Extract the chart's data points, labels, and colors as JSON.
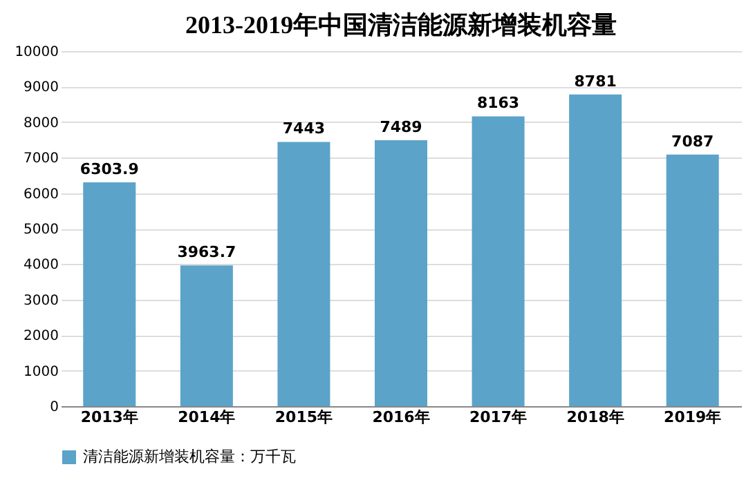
{
  "chart_data": {
    "type": "bar",
    "title": "2013-2019年中国清洁能源新增装机容量",
    "categories": [
      "2013年",
      "2014年",
      "2015年",
      "2016年",
      "2017年",
      "2018年",
      "2019年"
    ],
    "series": [
      {
        "name": "清洁能源新增装机容量：万千瓦",
        "color": "#5ba3c9",
        "values": [
          6303.9,
          3963.7,
          7443,
          7489,
          8163,
          8781,
          7087
        ]
      }
    ],
    "ylim": [
      0,
      10000
    ],
    "yticks": [
      0,
      1000,
      2000,
      3000,
      4000,
      5000,
      6000,
      7000,
      8000,
      9000,
      10000
    ],
    "grid": "y",
    "legend": "bottom",
    "data_labels": true
  }
}
